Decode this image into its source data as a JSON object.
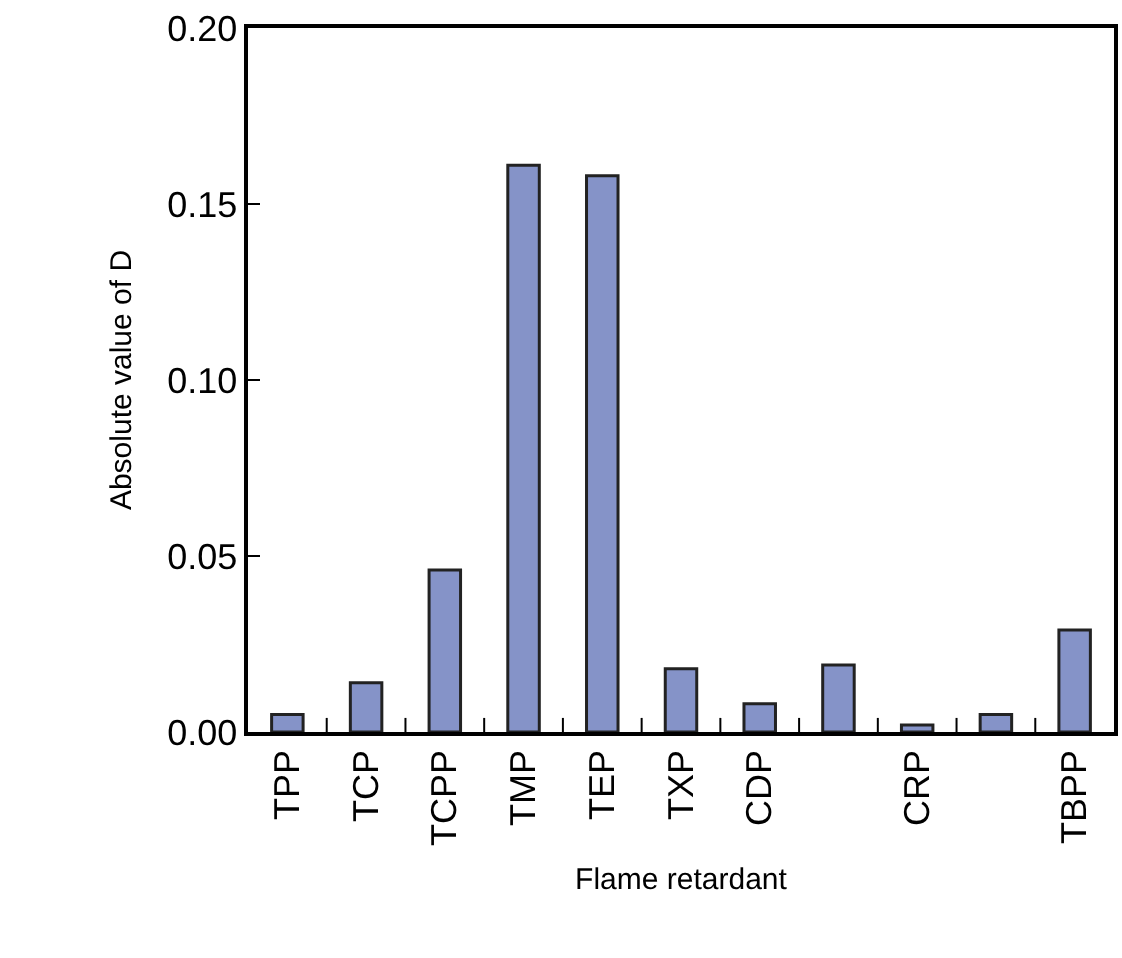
{
  "chart_data": {
    "type": "bar",
    "xlabel": "Flame retardant",
    "ylabel": "Absolute value of D",
    "categories": [
      "TPP",
      "TCP",
      "TCPP",
      "TMP",
      "TEP",
      "TXP",
      "CDP",
      null,
      "CRP",
      null,
      "TBPP"
    ],
    "values": [
      0.005,
      0.014,
      0.046,
      0.161,
      0.158,
      0.018,
      0.008,
      0.019,
      0.002,
      0.005,
      0.029
    ],
    "color": "#8593c8",
    "ylim": [
      0,
      0.2
    ],
    "yticks": [
      {
        "value": 0,
        "label": "0.00"
      },
      {
        "value": 0.05,
        "label": "0.05"
      },
      {
        "value": 0.1,
        "label": "0.10"
      },
      {
        "value": 0.15,
        "label": "0.15"
      },
      {
        "value": 0.2,
        "label": "0.20"
      }
    ],
    "grid": false
  }
}
